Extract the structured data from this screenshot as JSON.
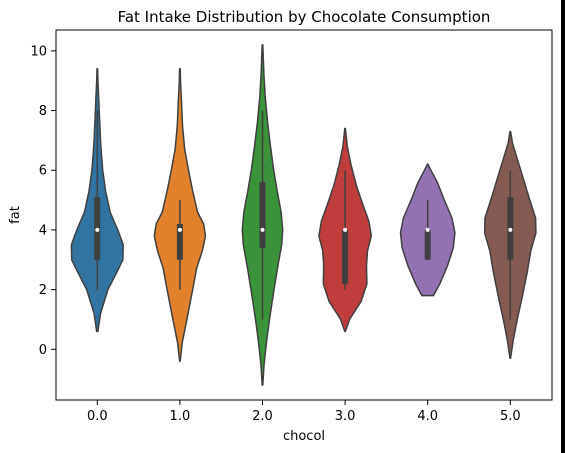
{
  "chart_data": {
    "type": "violin",
    "title": "Fat Intake Distribution by Chocolate Consumption",
    "xlabel": "chocol",
    "ylabel": "fat",
    "categories": [
      "0.0",
      "1.0",
      "2.0",
      "3.0",
      "4.0",
      "5.0"
    ],
    "ylim": [
      -1.7,
      10.7
    ],
    "yticks": [
      0,
      2,
      4,
      6,
      8,
      10
    ],
    "grid": false,
    "legend": "none",
    "series": [
      {
        "category": "0.0",
        "color": "#3274a1",
        "min": 2,
        "q1": 3,
        "median": 4,
        "q3": 5.1,
        "max": 8,
        "kde_range": [
          0.6,
          9.4
        ],
        "profile": [
          [
            0.6,
            0.02
          ],
          [
            1.2,
            0.1
          ],
          [
            2.0,
            0.33
          ],
          [
            2.6,
            0.62
          ],
          [
            3.0,
            0.8
          ],
          [
            3.5,
            0.81
          ],
          [
            4.0,
            0.64
          ],
          [
            4.6,
            0.4
          ],
          [
            5.3,
            0.26
          ],
          [
            6.0,
            0.17
          ],
          [
            6.5,
            0.13
          ],
          [
            7.0,
            0.1
          ],
          [
            7.5,
            0.08
          ],
          [
            8.0,
            0.06
          ],
          [
            8.5,
            0.04
          ],
          [
            9.0,
            0.02
          ],
          [
            9.4,
            0.01
          ]
        ]
      },
      {
        "category": "1.0",
        "color": "#e1812c",
        "min": 2,
        "q1": 3,
        "median": 4,
        "q3": 4.2,
        "max": 5,
        "kde_range": [
          -0.4,
          9.4
        ],
        "profile": [
          [
            -0.4,
            0.01
          ],
          [
            0.2,
            0.07
          ],
          [
            1.0,
            0.22
          ],
          [
            2.0,
            0.4
          ],
          [
            2.7,
            0.52
          ],
          [
            3.3,
            0.7
          ],
          [
            3.8,
            0.8
          ],
          [
            4.2,
            0.74
          ],
          [
            4.6,
            0.55
          ],
          [
            5.3,
            0.4
          ],
          [
            6.0,
            0.27
          ],
          [
            6.7,
            0.15
          ],
          [
            7.5,
            0.08
          ],
          [
            8.3,
            0.05
          ],
          [
            9.0,
            0.02
          ],
          [
            9.4,
            0.01
          ]
        ]
      },
      {
        "category": "2.0",
        "color": "#3a923a",
        "min": 1,
        "q1": 3.4,
        "median": 4,
        "q3": 5.6,
        "max": 8,
        "kde_range": [
          -1.2,
          10.2
        ],
        "profile": [
          [
            -1.2,
            0.01
          ],
          [
            -0.5,
            0.05
          ],
          [
            0.3,
            0.13
          ],
          [
            1.0,
            0.22
          ],
          [
            2.0,
            0.36
          ],
          [
            2.8,
            0.48
          ],
          [
            3.5,
            0.6
          ],
          [
            4.0,
            0.63
          ],
          [
            4.6,
            0.58
          ],
          [
            5.3,
            0.46
          ],
          [
            6.0,
            0.35
          ],
          [
            6.8,
            0.25
          ],
          [
            7.6,
            0.16
          ],
          [
            8.5,
            0.08
          ],
          [
            9.3,
            0.04
          ],
          [
            10.2,
            0.01
          ]
        ]
      },
      {
        "category": "3.0",
        "color": "#c03d3e",
        "min": 2,
        "q1": 2.2,
        "median": 4,
        "q3": 4,
        "max": 6,
        "kde_range": [
          0.6,
          7.4
        ],
        "profile": [
          [
            0.6,
            0.01
          ],
          [
            1.0,
            0.14
          ],
          [
            1.6,
            0.5
          ],
          [
            2.2,
            0.68
          ],
          [
            2.8,
            0.67
          ],
          [
            3.3,
            0.7
          ],
          [
            3.8,
            0.82
          ],
          [
            4.3,
            0.74
          ],
          [
            4.8,
            0.57
          ],
          [
            5.5,
            0.35
          ],
          [
            6.2,
            0.18
          ],
          [
            6.8,
            0.07
          ],
          [
            7.4,
            0.01
          ]
        ]
      },
      {
        "category": "4.0",
        "color": "#9372b2",
        "min": 3,
        "q1": 3,
        "median": 4,
        "q3": 4,
        "max": 5,
        "kde_range": [
          1.8,
          6.2
        ],
        "profile": [
          [
            1.8,
            0.18
          ],
          [
            2.2,
            0.38
          ],
          [
            2.8,
            0.62
          ],
          [
            3.4,
            0.8
          ],
          [
            3.9,
            0.85
          ],
          [
            4.4,
            0.76
          ],
          [
            5.0,
            0.52
          ],
          [
            5.6,
            0.3
          ],
          [
            6.0,
            0.1
          ],
          [
            6.2,
            0.01
          ]
        ]
      },
      {
        "category": "5.0",
        "color": "#845b53",
        "min": 1,
        "q1": 3,
        "median": 4,
        "q3": 5.1,
        "max": 6,
        "kde_range": [
          -0.3,
          7.3
        ],
        "profile": [
          [
            -0.3,
            0.01
          ],
          [
            0.3,
            0.09
          ],
          [
            1.0,
            0.22
          ],
          [
            1.8,
            0.38
          ],
          [
            2.6,
            0.53
          ],
          [
            3.3,
            0.64
          ],
          [
            3.9,
            0.8
          ],
          [
            4.4,
            0.79
          ],
          [
            5.0,
            0.61
          ],
          [
            5.6,
            0.44
          ],
          [
            6.3,
            0.24
          ],
          [
            6.9,
            0.07
          ],
          [
            7.3,
            0.01
          ]
        ]
      }
    ]
  }
}
